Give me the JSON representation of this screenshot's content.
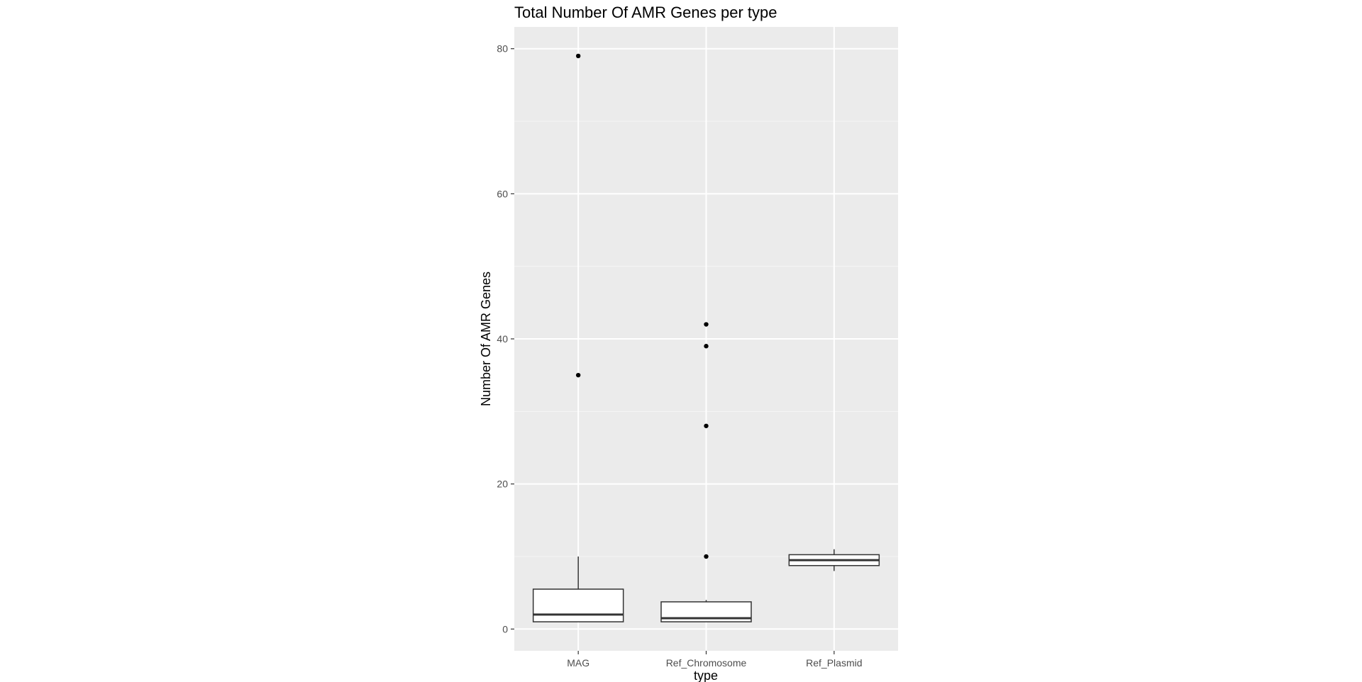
{
  "chart_data": {
    "type": "boxplot",
    "title": "Total Number Of AMR Genes per type",
    "xlabel": "type",
    "ylabel": "Number Of AMR Genes",
    "categories": [
      "MAG",
      "Ref_Chromosome",
      "Ref_Plasmid"
    ],
    "ylim": [
      -3,
      83
    ],
    "yticks": [
      0,
      20,
      40,
      60,
      80
    ],
    "ytick_labels": [
      "0",
      "20",
      "40",
      "60",
      "80"
    ],
    "grid": true,
    "legend": "none",
    "boxes": [
      {
        "category": "MAG",
        "whisker_low": 1,
        "q1": 1,
        "median": 2,
        "q3": 5.5,
        "whisker_high": 10,
        "outliers": [
          35,
          79
        ]
      },
      {
        "category": "Ref_Chromosome",
        "whisker_low": 1,
        "q1": 1,
        "median": 1.5,
        "q3": 3.75,
        "whisker_high": 4,
        "outliers": [
          10,
          28,
          39,
          42
        ]
      },
      {
        "category": "Ref_Plasmid",
        "whisker_low": 8,
        "q1": 8.75,
        "median": 9.5,
        "q3": 10.25,
        "whisker_high": 11,
        "outliers": []
      }
    ]
  },
  "colors": {
    "panel_background": "#ebebeb",
    "grid_major": "#ffffff",
    "grid_minor": "#f5f5f5",
    "box_fill": "#ffffff",
    "box_line": "#333333",
    "tick": "#333333",
    "point": "#000000"
  }
}
